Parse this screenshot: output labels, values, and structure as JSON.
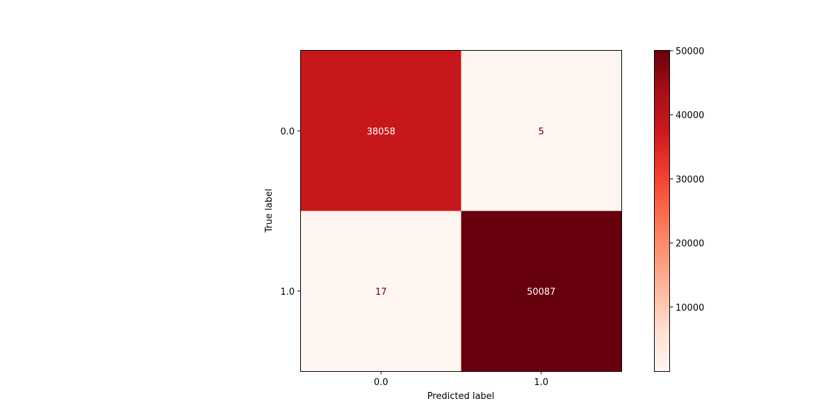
{
  "chart_data": {
    "type": "heatmap",
    "title": "",
    "xlabel": "Predicted label",
    "ylabel": "True label",
    "x_categories": [
      "0.0",
      "1.0"
    ],
    "y_categories": [
      "0.0",
      "1.0"
    ],
    "values": [
      [
        38058,
        5
      ],
      [
        17,
        50087
      ]
    ],
    "colormap": "Reds",
    "colorbar": {
      "min": 0,
      "max": 50000,
      "ticks": [
        "10000",
        "20000",
        "30000",
        "40000",
        "50000"
      ]
    },
    "colors": {
      "low": "#fff5f0",
      "high": "#67000d",
      "text_on_dark": "#ffffff",
      "text_on_light": "#67000d"
    }
  }
}
